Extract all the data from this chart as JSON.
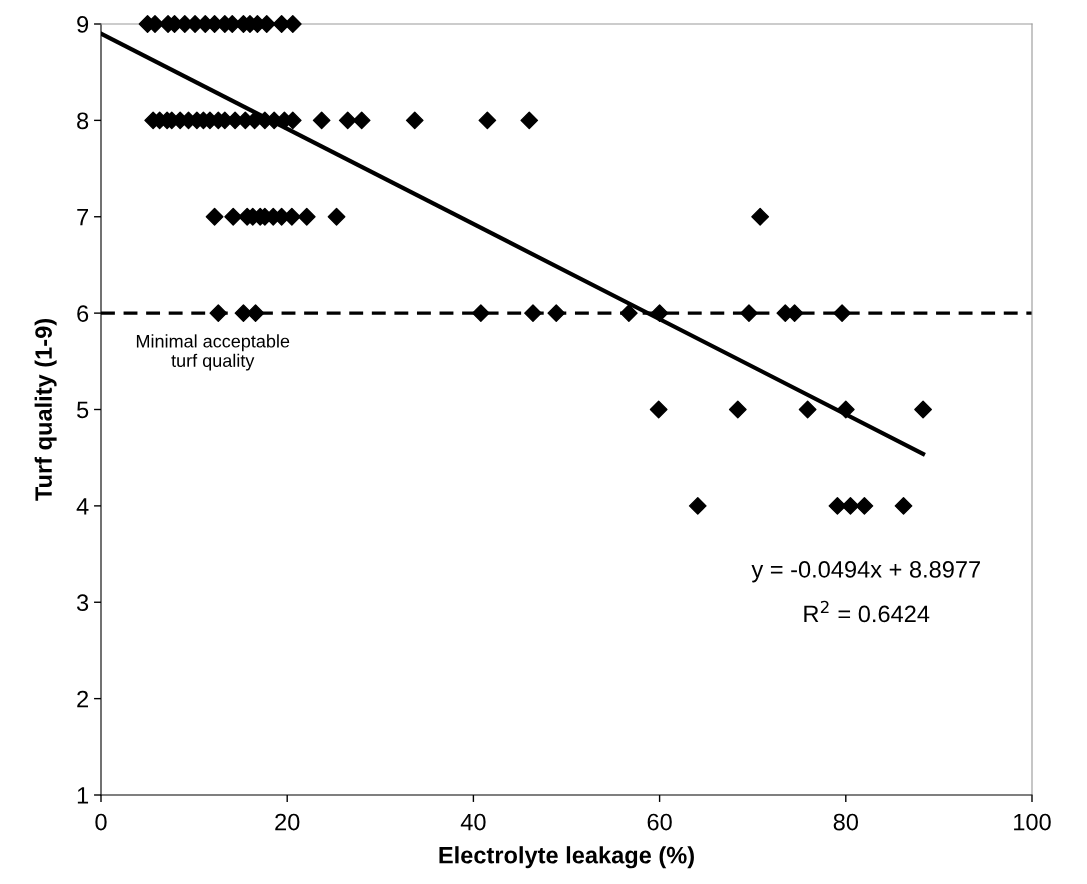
{
  "chart_data": {
    "type": "scatter",
    "xlabel": "Electrolyte leakage (%)",
    "ylabel": "Turf quality (1-9)",
    "xlim": [
      0,
      100
    ],
    "xticks": [
      0,
      20,
      40,
      60,
      80,
      100
    ],
    "ylim": [
      1,
      9
    ],
    "yticks": [
      1,
      2,
      3,
      4,
      5,
      6,
      7,
      8,
      9
    ],
    "grid": false,
    "legend": false,
    "marker": "diamond",
    "series": [
      {
        "color": "#000000",
        "x": [
          5.0,
          5.8,
          7.2,
          7.9,
          9.0,
          10.1,
          11.2,
          12.2,
          13.3,
          14.1,
          15.3,
          16.0,
          16.8,
          17.8,
          19.4,
          20.6,
          5.6,
          6.3,
          7.1,
          7.6,
          8.5,
          9.4,
          10.3,
          11.0,
          11.7,
          12.6,
          13.3,
          14.4,
          15.5,
          16.5,
          17.6,
          18.6,
          19.7,
          20.6,
          23.7,
          26.5,
          28.0,
          33.7,
          41.5,
          46.0,
          12.2,
          14.2,
          15.7,
          16.3,
          17.1,
          17.6,
          18.5,
          19.4,
          20.5,
          22.1,
          25.3,
          70.8,
          12.6,
          15.3,
          16.6,
          40.8,
          46.4,
          48.9,
          56.7,
          60.0,
          69.6,
          73.5,
          74.5,
          79.6,
          59.9,
          68.4,
          75.9,
          80.0,
          88.3,
          64.1,
          79.1,
          80.5,
          82.0,
          86.2
        ],
        "values": [
          9,
          9,
          9,
          9,
          9,
          9,
          9,
          9,
          9,
          9,
          9,
          9,
          9,
          9,
          9,
          9,
          8,
          8,
          8,
          8,
          8,
          8,
          8,
          8,
          8,
          8,
          8,
          8,
          8,
          8,
          8,
          8,
          8,
          8,
          8,
          8,
          8,
          8,
          8,
          8,
          7,
          7,
          7,
          7,
          7,
          7,
          7,
          7,
          7,
          7,
          7,
          7,
          6,
          6,
          6,
          6,
          6,
          6,
          6,
          6,
          6,
          6,
          6,
          6,
          5,
          5,
          5,
          5,
          5,
          4,
          4,
          4,
          4,
          4
        ]
      },
      {
        "type": "line",
        "color": "#000000",
        "line_style": "solid",
        "marker": "none",
        "x": [
          0,
          88.3
        ],
        "values": [
          8.9,
          4.54
        ]
      }
    ],
    "ref_lines": [
      {
        "axis": "y",
        "value": 6,
        "label": "Minimal acceptable\nturf quality",
        "color": "#000000",
        "line_style": "dashed"
      }
    ],
    "annotations": [
      "y = -0.0494x + 8.8977",
      "R$^{2}$ = 0.6424"
    ]
  }
}
